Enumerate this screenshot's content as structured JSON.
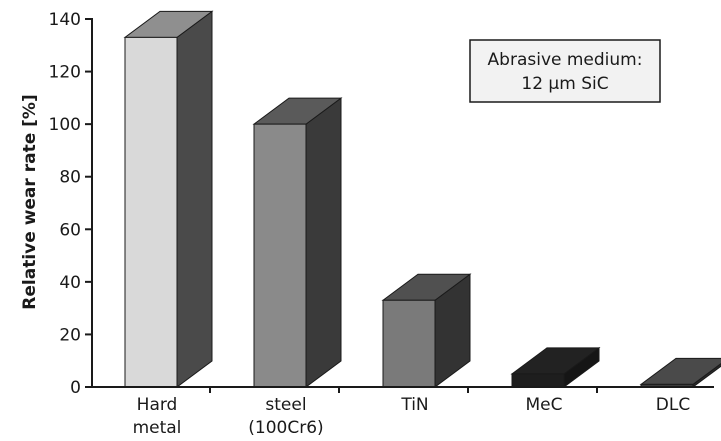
{
  "chart_data": {
    "type": "bar",
    "title": "",
    "xlabel": "",
    "ylabel": "Relative wear rate [%]",
    "ylim": [
      0,
      140
    ],
    "yticks": [
      0,
      20,
      40,
      60,
      80,
      100,
      120,
      140
    ],
    "grid": false,
    "categories": [
      {
        "line1": "Hard",
        "line2": "metal"
      },
      {
        "line1": "steel",
        "line2": "(100Cr6)"
      },
      {
        "line1": "TiN",
        "line2": ""
      },
      {
        "line1": "MeC",
        "line2": ""
      },
      {
        "line1": "DLC",
        "line2": ""
      }
    ],
    "values": [
      133,
      100,
      33,
      5,
      1
    ],
    "bar_colors": [
      {
        "front": "#d9d9d9",
        "top": "#8f8f8f",
        "side": "#4a4a4a"
      },
      {
        "front": "#8a8a8a",
        "top": "#5a5a5a",
        "side": "#3a3a3a"
      },
      {
        "front": "#7a7a7a",
        "top": "#505050",
        "side": "#333333"
      },
      {
        "front": "#1e1e1e",
        "top": "#222222",
        "side": "#151515"
      },
      {
        "front": "#3c3c3c",
        "top": "#4a4a4a",
        "side": "#2a2a2a"
      }
    ],
    "annotation": {
      "line1": "Abrasive medium:",
      "line2": "12 µm SiC"
    }
  }
}
